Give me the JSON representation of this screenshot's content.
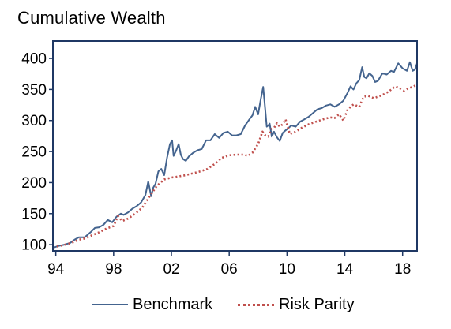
{
  "chart_data": {
    "type": "line",
    "title": "Cumulative Wealth",
    "xlabel": "",
    "ylabel": "",
    "x_tick_labels": [
      "94",
      "98",
      "02",
      "06",
      "10",
      "14",
      "18"
    ],
    "x_ticks": [
      1994,
      1998,
      2002,
      2006,
      2010,
      2014,
      2018
    ],
    "xlim": [
      1993.8,
      2019.0
    ],
    "y_ticks": [
      100,
      150,
      200,
      250,
      300,
      350,
      400
    ],
    "ylim": [
      90,
      428
    ],
    "grid": false,
    "legend_position": "bottom",
    "series": [
      {
        "name": "Benchmark",
        "color": "#44648f",
        "style": "solid",
        "x": [
          1993.8,
          1994.2,
          1994.6,
          1995.0,
          1995.3,
          1995.6,
          1996.0,
          1996.4,
          1996.7,
          1997.0,
          1997.3,
          1997.6,
          1997.9,
          1998.2,
          1998.5,
          1998.7,
          1999.0,
          1999.3,
          1999.6,
          1999.9,
          2000.2,
          2000.4,
          2000.6,
          2000.75,
          2000.9,
          2001.1,
          2001.3,
          2001.5,
          2001.7,
          2001.9,
          2002.05,
          2002.15,
          2002.3,
          2002.5,
          2002.65,
          2002.8,
          2003.0,
          2003.2,
          2003.5,
          2003.8,
          2004.1,
          2004.4,
          2004.7,
          2005.0,
          2005.3,
          2005.6,
          2005.9,
          2006.2,
          2006.5,
          2006.8,
          2007.1,
          2007.4,
          2007.6,
          2007.8,
          2008.0,
          2008.2,
          2008.35,
          2008.5,
          2008.6,
          2008.7,
          2008.8,
          2008.95,
          2009.1,
          2009.3,
          2009.5,
          2009.7,
          2009.9,
          2010.1,
          2010.3,
          2010.6,
          2010.9,
          2011.2,
          2011.5,
          2011.8,
          2012.1,
          2012.4,
          2012.7,
          2013.0,
          2013.3,
          2013.6,
          2013.9,
          2014.2,
          2014.4,
          2014.6,
          2014.8,
          2015.0,
          2015.2,
          2015.35,
          2015.5,
          2015.7,
          2015.9,
          2016.1,
          2016.3,
          2016.6,
          2016.9,
          2017.2,
          2017.4,
          2017.7,
          2018.0,
          2018.3,
          2018.5,
          2018.7,
          2018.85,
          2019.0
        ],
        "values": [
          95,
          98,
          100,
          103,
          108,
          112,
          112,
          120,
          127,
          128,
          132,
          140,
          136,
          145,
          150,
          148,
          152,
          158,
          162,
          168,
          180,
          202,
          178,
          192,
          198,
          218,
          222,
          212,
          240,
          262,
          268,
          243,
          250,
          262,
          245,
          238,
          235,
          242,
          248,
          252,
          254,
          268,
          268,
          278,
          272,
          280,
          282,
          276,
          276,
          278,
          292,
          302,
          308,
          322,
          310,
          336,
          354,
          316,
          290,
          292,
          295,
          274,
          282,
          273,
          267,
          280,
          284,
          288,
          292,
          290,
          298,
          302,
          306,
          312,
          318,
          320,
          324,
          326,
          322,
          326,
          332,
          345,
          355,
          350,
          360,
          365,
          386,
          370,
          368,
          376,
          372,
          362,
          364,
          376,
          374,
          380,
          378,
          392,
          384,
          380,
          394,
          380,
          382,
          392
        ]
      },
      {
        "name": "Risk Parity",
        "color": "#c0504d",
        "style": "dotted",
        "x": [
          1993.8,
          1994.3,
          1994.8,
          1995.2,
          1995.6,
          1996.0,
          1996.5,
          1997.0,
          1997.5,
          1998.0,
          1998.3,
          1998.6,
          1999.0,
          1999.5,
          2000.0,
          2000.5,
          2001.0,
          2001.5,
          2002.0,
          2002.5,
          2003.0,
          2003.5,
          2004.0,
          2004.5,
          2005.0,
          2005.5,
          2006.0,
          2006.5,
          2007.0,
          2007.3,
          2007.6,
          2008.0,
          2008.3,
          2008.5,
          2008.7,
          2008.9,
          2009.1,
          2009.3,
          2009.5,
          2009.7,
          2009.9,
          2010.2,
          2010.6,
          2011.0,
          2011.5,
          2012.0,
          2012.5,
          2013.0,
          2013.3,
          2013.6,
          2013.9,
          2014.2,
          2014.6,
          2015.0,
          2015.3,
          2015.6,
          2016.0,
          2016.5,
          2017.0,
          2017.5,
          2017.8,
          2018.1,
          2018.4,
          2018.7,
          2019.0
        ],
        "values": [
          96,
          98,
          101,
          104,
          108,
          110,
          115,
          120,
          126,
          130,
          146,
          138,
          142,
          150,
          160,
          178,
          195,
          205,
          208,
          210,
          212,
          215,
          218,
          222,
          230,
          240,
          244,
          245,
          245,
          243,
          248,
          262,
          282,
          276,
          274,
          286,
          288,
          296,
          290,
          294,
          302,
          278,
          282,
          288,
          294,
          298,
          302,
          305,
          304,
          310,
          300,
          318,
          326,
          322,
          338,
          340,
          336,
          340,
          346,
          355,
          352,
          348,
          352,
          354,
          358
        ]
      }
    ]
  }
}
